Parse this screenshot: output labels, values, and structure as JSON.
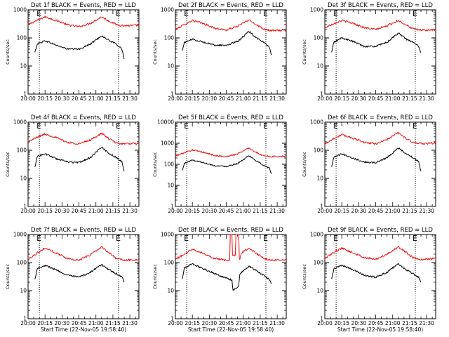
{
  "colors": {
    "background": "#ffffff",
    "axes": "#000000",
    "events": "#000000",
    "lld": "#ee1111"
  },
  "chart_data": [
    {
      "type": "line",
      "log_y": true,
      "ylim": [
        1,
        1000
      ],
      "xlim": [
        "20:00",
        "21:38"
      ],
      "title": "Det 1f BLACK = Events, RED = LLD",
      "xlabel": "",
      "ylabel": "Counts/sec",
      "x_ticks": [
        "20:00",
        "20:15",
        "20:30",
        "20:45",
        "21:00",
        "21:15",
        "21:30"
      ],
      "y_ticks": [
        "1",
        "10",
        "100",
        "1000"
      ],
      "markers": [
        {
          "label": "E",
          "time": "20:10"
        },
        {
          "label": "E",
          "time": "21:20"
        }
      ],
      "series": [
        {
          "name": "LLD",
          "color": "#ee1111",
          "times": [
            "20:00",
            "20:08",
            "20:15",
            "20:25",
            "20:35",
            "20:45",
            "20:55",
            "21:05",
            "21:12",
            "21:18",
            "21:25",
            "21:38"
          ],
          "values": [
            300,
            420,
            560,
            420,
            290,
            250,
            330,
            560,
            390,
            300,
            270,
            280
          ]
        },
        {
          "name": "Events",
          "color": "#000000",
          "times": [
            "20:06",
            "20:08",
            "20:15",
            "20:25",
            "20:35",
            "20:45",
            "20:55",
            "21:05",
            "21:12",
            "21:18",
            "21:23",
            "21:25"
          ],
          "values": [
            30,
            60,
            80,
            55,
            40,
            40,
            60,
            120,
            80,
            60,
            40,
            18
          ]
        }
      ]
    },
    {
      "type": "line",
      "log_y": true,
      "ylim": [
        1,
        1000
      ],
      "xlim": [
        "20:00",
        "21:38"
      ],
      "title": "Det 2f BLACK = Events, RED = LLD",
      "xlabel": "",
      "ylabel": "Counts/sec",
      "x_ticks": [
        "20:00",
        "20:15",
        "20:30",
        "20:45",
        "21:00",
        "21:15",
        "21:30"
      ],
      "y_ticks": [
        "1",
        "10",
        "100",
        "1000"
      ],
      "markers": [
        {
          "label": "E",
          "time": "20:10"
        },
        {
          "label": "E",
          "time": "21:20"
        }
      ],
      "series": [
        {
          "name": "LLD",
          "color": "#ee1111",
          "times": [
            "20:00",
            "20:08",
            "20:15",
            "20:25",
            "20:35",
            "20:45",
            "20:55",
            "21:05",
            "21:12",
            "21:18",
            "21:25",
            "21:38"
          ],
          "values": [
            200,
            300,
            420,
            320,
            220,
            190,
            260,
            440,
            290,
            210,
            180,
            190
          ]
        },
        {
          "name": "Events",
          "color": "#000000",
          "times": [
            "20:06",
            "20:08",
            "20:15",
            "20:25",
            "20:35",
            "20:45",
            "20:55",
            "21:05",
            "21:12",
            "21:18",
            "21:23",
            "21:25"
          ],
          "values": [
            35,
            70,
            90,
            70,
            55,
            55,
            75,
            170,
            100,
            70,
            45,
            25
          ]
        }
      ]
    },
    {
      "type": "line",
      "log_y": true,
      "ylim": [
        1,
        1000
      ],
      "xlim": [
        "20:00",
        "21:38"
      ],
      "title": "Det 3f BLACK = Events, RED = LLD",
      "xlabel": "",
      "ylabel": "Counts/sec",
      "x_ticks": [
        "20:00",
        "20:15",
        "20:30",
        "20:45",
        "21:00",
        "21:15",
        "21:30"
      ],
      "y_ticks": [
        "1",
        "10",
        "100",
        "1000"
      ],
      "markers": [
        {
          "label": "E",
          "time": "20:10"
        },
        {
          "label": "E",
          "time": "21:20"
        }
      ],
      "series": [
        {
          "name": "LLD",
          "color": "#ee1111",
          "times": [
            "20:00",
            "20:08",
            "20:15",
            "20:25",
            "20:35",
            "20:45",
            "20:55",
            "21:05",
            "21:12",
            "21:18",
            "21:25",
            "21:38"
          ],
          "values": [
            230,
            330,
            420,
            330,
            230,
            200,
            270,
            420,
            290,
            210,
            190,
            190
          ]
        },
        {
          "name": "Events",
          "color": "#000000",
          "times": [
            "20:06",
            "20:08",
            "20:15",
            "20:25",
            "20:35",
            "20:45",
            "20:55",
            "21:05",
            "21:12",
            "21:18",
            "21:23",
            "21:25"
          ],
          "values": [
            30,
            70,
            100,
            75,
            50,
            50,
            70,
            150,
            90,
            70,
            50,
            30
          ]
        }
      ]
    },
    {
      "type": "line",
      "log_y": true,
      "ylim": [
        1,
        1000
      ],
      "xlim": [
        "20:00",
        "21:38"
      ],
      "title": "Det 4f BLACK = Events, RED = LLD",
      "xlabel": "",
      "ylabel": "Counts/sec",
      "x_ticks": [
        "20:00",
        "20:15",
        "20:30",
        "20:45",
        "21:00",
        "21:15",
        "21:30"
      ],
      "y_ticks": [
        "1",
        "10",
        "100",
        "1000"
      ],
      "markers": [
        {
          "label": "E",
          "time": "20:10"
        },
        {
          "label": "E",
          "time": "21:20"
        }
      ],
      "series": [
        {
          "name": "LLD",
          "color": "#ee1111",
          "times": [
            "20:00",
            "20:08",
            "20:15",
            "20:25",
            "20:35",
            "20:45",
            "20:55",
            "21:05",
            "21:12",
            "21:18",
            "21:25",
            "21:38"
          ],
          "values": [
            200,
            290,
            380,
            280,
            190,
            170,
            230,
            400,
            250,
            180,
            170,
            170
          ]
        },
        {
          "name": "Events",
          "color": "#000000",
          "times": [
            "20:06",
            "20:08",
            "20:15",
            "20:25",
            "20:35",
            "20:45",
            "20:55",
            "21:05",
            "21:12",
            "21:18",
            "21:23",
            "21:25"
          ],
          "values": [
            25,
            60,
            75,
            50,
            38,
            36,
            55,
            130,
            75,
            55,
            40,
            18
          ]
        }
      ]
    },
    {
      "type": "line",
      "log_y": true,
      "ylim": [
        1,
        10000
      ],
      "xlim": [
        "20:00",
        "21:38"
      ],
      "title": "Det 5f BLACK = Events, RED = LLD",
      "xlabel": "",
      "ylabel": "Counts/sec",
      "x_ticks": [
        "20:00",
        "20:15",
        "20:30",
        "20:45",
        "21:00",
        "21:15",
        "21:30"
      ],
      "y_ticks": [
        "1",
        "10",
        "100",
        "1000",
        "10000"
      ],
      "markers": [
        {
          "label": "E",
          "time": "20:10"
        },
        {
          "label": "E",
          "time": "21:20"
        }
      ],
      "series": [
        {
          "name": "LLD",
          "color": "#ee1111",
          "times": [
            "20:00",
            "20:08",
            "20:15",
            "20:25",
            "20:35",
            "20:45",
            "20:55",
            "21:05",
            "21:12",
            "21:18",
            "21:25",
            "21:38"
          ],
          "values": [
            240,
            360,
            480,
            370,
            260,
            230,
            310,
            600,
            350,
            250,
            230,
            240
          ]
        },
        {
          "name": "Events",
          "color": "#000000",
          "times": [
            "20:06",
            "20:08",
            "20:15",
            "20:25",
            "20:35",
            "20:45",
            "20:55",
            "21:05",
            "21:12",
            "21:18",
            "21:23",
            "21:25"
          ],
          "values": [
            50,
            110,
            160,
            120,
            85,
            80,
            110,
            250,
            140,
            90,
            65,
            35
          ]
        }
      ]
    },
    {
      "type": "line",
      "log_y": true,
      "ylim": [
        1,
        1000
      ],
      "xlim": [
        "20:00",
        "21:38"
      ],
      "title": "Det 6f BLACK = Events, RED = LLD",
      "xlabel": "",
      "ylabel": "Counts/sec",
      "x_ticks": [
        "20:00",
        "20:15",
        "20:30",
        "20:45",
        "21:00",
        "21:15",
        "21:30"
      ],
      "y_ticks": [
        "1",
        "10",
        "100",
        "1000"
      ],
      "markers": [
        {
          "label": "E",
          "time": "20:10"
        },
        {
          "label": "E",
          "time": "21:20"
        }
      ],
      "series": [
        {
          "name": "LLD",
          "color": "#ee1111",
          "times": [
            "20:00",
            "20:08",
            "20:15",
            "20:25",
            "20:35",
            "20:45",
            "20:55",
            "21:05",
            "21:12",
            "21:18",
            "21:25",
            "21:38"
          ],
          "values": [
            170,
            260,
            360,
            270,
            190,
            170,
            240,
            420,
            260,
            190,
            170,
            180
          ]
        },
        {
          "name": "Events",
          "color": "#000000",
          "times": [
            "20:06",
            "20:08",
            "20:15",
            "20:25",
            "20:35",
            "20:45",
            "20:55",
            "21:05",
            "21:12",
            "21:18",
            "21:23",
            "21:25"
          ],
          "values": [
            25,
            55,
            75,
            52,
            38,
            36,
            55,
            120,
            75,
            55,
            40,
            18
          ]
        }
      ]
    },
    {
      "type": "line",
      "log_y": true,
      "ylim": [
        1,
        1000
      ],
      "xlim": [
        "20:00",
        "21:38"
      ],
      "title": "Det 7f BLACK = Events, RED = LLD",
      "xlabel": "Start Time (22-Nov-05 19:58:40)",
      "ylabel": "Counts/sec",
      "x_ticks": [
        "20:00",
        "20:15",
        "20:30",
        "20:45",
        "21:00",
        "21:15",
        "21:30"
      ],
      "y_ticks": [
        "1",
        "10",
        "100",
        "1000"
      ],
      "markers": [
        {
          "label": "E",
          "time": "20:10"
        },
        {
          "label": "E",
          "time": "21:20"
        }
      ],
      "series": [
        {
          "name": "LLD",
          "color": "#ee1111",
          "times": [
            "20:00",
            "20:08",
            "20:15",
            "20:25",
            "20:35",
            "20:45",
            "20:55",
            "21:05",
            "21:12",
            "21:18",
            "21:25",
            "21:38"
          ],
          "values": [
            130,
            220,
            330,
            220,
            140,
            120,
            190,
            360,
            220,
            140,
            120,
            130
          ]
        },
        {
          "name": "Events",
          "color": "#000000",
          "times": [
            "20:06",
            "20:08",
            "20:15",
            "20:25",
            "20:35",
            "20:45",
            "20:55",
            "21:05",
            "21:12",
            "21:18",
            "21:23",
            "21:25"
          ],
          "values": [
            25,
            60,
            80,
            55,
            35,
            30,
            45,
            85,
            55,
            40,
            30,
            20
          ]
        }
      ]
    },
    {
      "type": "line",
      "log_y": true,
      "ylim": [
        1,
        1000
      ],
      "xlim": [
        "20:00",
        "21:38"
      ],
      "title": "Det 8f BLACK = Events, RED = LLD",
      "xlabel": "Start Time (22-Nov-05 19:58:40)",
      "ylabel": "Counts/sec",
      "x_ticks": [
        "20:00",
        "20:15",
        "20:30",
        "20:45",
        "21:00",
        "21:15",
        "21:30"
      ],
      "y_ticks": [
        "1",
        "10",
        "100",
        "1000"
      ],
      "markers": [
        {
          "label": "E",
          "time": "20:10"
        },
        {
          "label": "E",
          "time": "21:20"
        }
      ],
      "series": [
        {
          "name": "LLD",
          "color": "#ee1111",
          "times": [
            "20:00",
            "20:08",
            "20:15",
            "20:25",
            "20:35",
            "20:45",
            "20:48",
            "20:49",
            "20:50",
            "20:52",
            "20:53",
            "20:54",
            "20:56",
            "20:57",
            "20:58",
            "21:00",
            "21:05",
            "21:12",
            "21:18",
            "21:25",
            "21:38"
          ],
          "values": [
            130,
            200,
            310,
            210,
            140,
            120,
            120,
            1000,
            1000,
            180,
            180,
            1000,
            1000,
            140,
            200,
            250,
            320,
            210,
            140,
            120,
            130
          ]
        },
        {
          "name": "Events",
          "color": "#000000",
          "times": [
            "20:06",
            "20:08",
            "20:15",
            "20:25",
            "20:35",
            "20:45",
            "20:50",
            "20:51",
            "20:56",
            "20:57",
            "21:00",
            "21:05",
            "21:12",
            "21:18",
            "21:23",
            "21:25"
          ],
          "values": [
            25,
            65,
            90,
            60,
            40,
            28,
            24,
            10,
            15,
            40,
            50,
            75,
            50,
            35,
            25,
            18
          ]
        }
      ]
    },
    {
      "type": "line",
      "log_y": true,
      "ylim": [
        1,
        1000
      ],
      "xlim": [
        "20:00",
        "21:38"
      ],
      "title": "Det 9f BLACK = Events, RED = LLD",
      "xlabel": "Start Time (22-Nov-05 19:58:40)",
      "ylabel": "Counts/sec",
      "x_ticks": [
        "20:00",
        "20:15",
        "20:30",
        "20:45",
        "21:00",
        "21:15",
        "21:30"
      ],
      "y_ticks": [
        "1",
        "10",
        "100",
        "1000"
      ],
      "markers": [
        {
          "label": "E",
          "time": "20:10"
        },
        {
          "label": "E",
          "time": "21:20"
        }
      ],
      "series": [
        {
          "name": "LLD",
          "color": "#ee1111",
          "times": [
            "20:00",
            "20:08",
            "20:15",
            "20:25",
            "20:35",
            "20:45",
            "20:55",
            "21:05",
            "21:12",
            "21:18",
            "21:25",
            "21:38"
          ],
          "values": [
            140,
            230,
            330,
            220,
            150,
            130,
            200,
            360,
            230,
            150,
            130,
            140
          ]
        },
        {
          "name": "Events",
          "color": "#000000",
          "times": [
            "20:06",
            "20:08",
            "20:15",
            "20:25",
            "20:35",
            "20:45",
            "20:55",
            "21:05",
            "21:12",
            "21:18",
            "21:23",
            "21:25"
          ],
          "values": [
            25,
            60,
            80,
            55,
            35,
            30,
            45,
            90,
            55,
            40,
            30,
            20
          ]
        }
      ]
    }
  ]
}
